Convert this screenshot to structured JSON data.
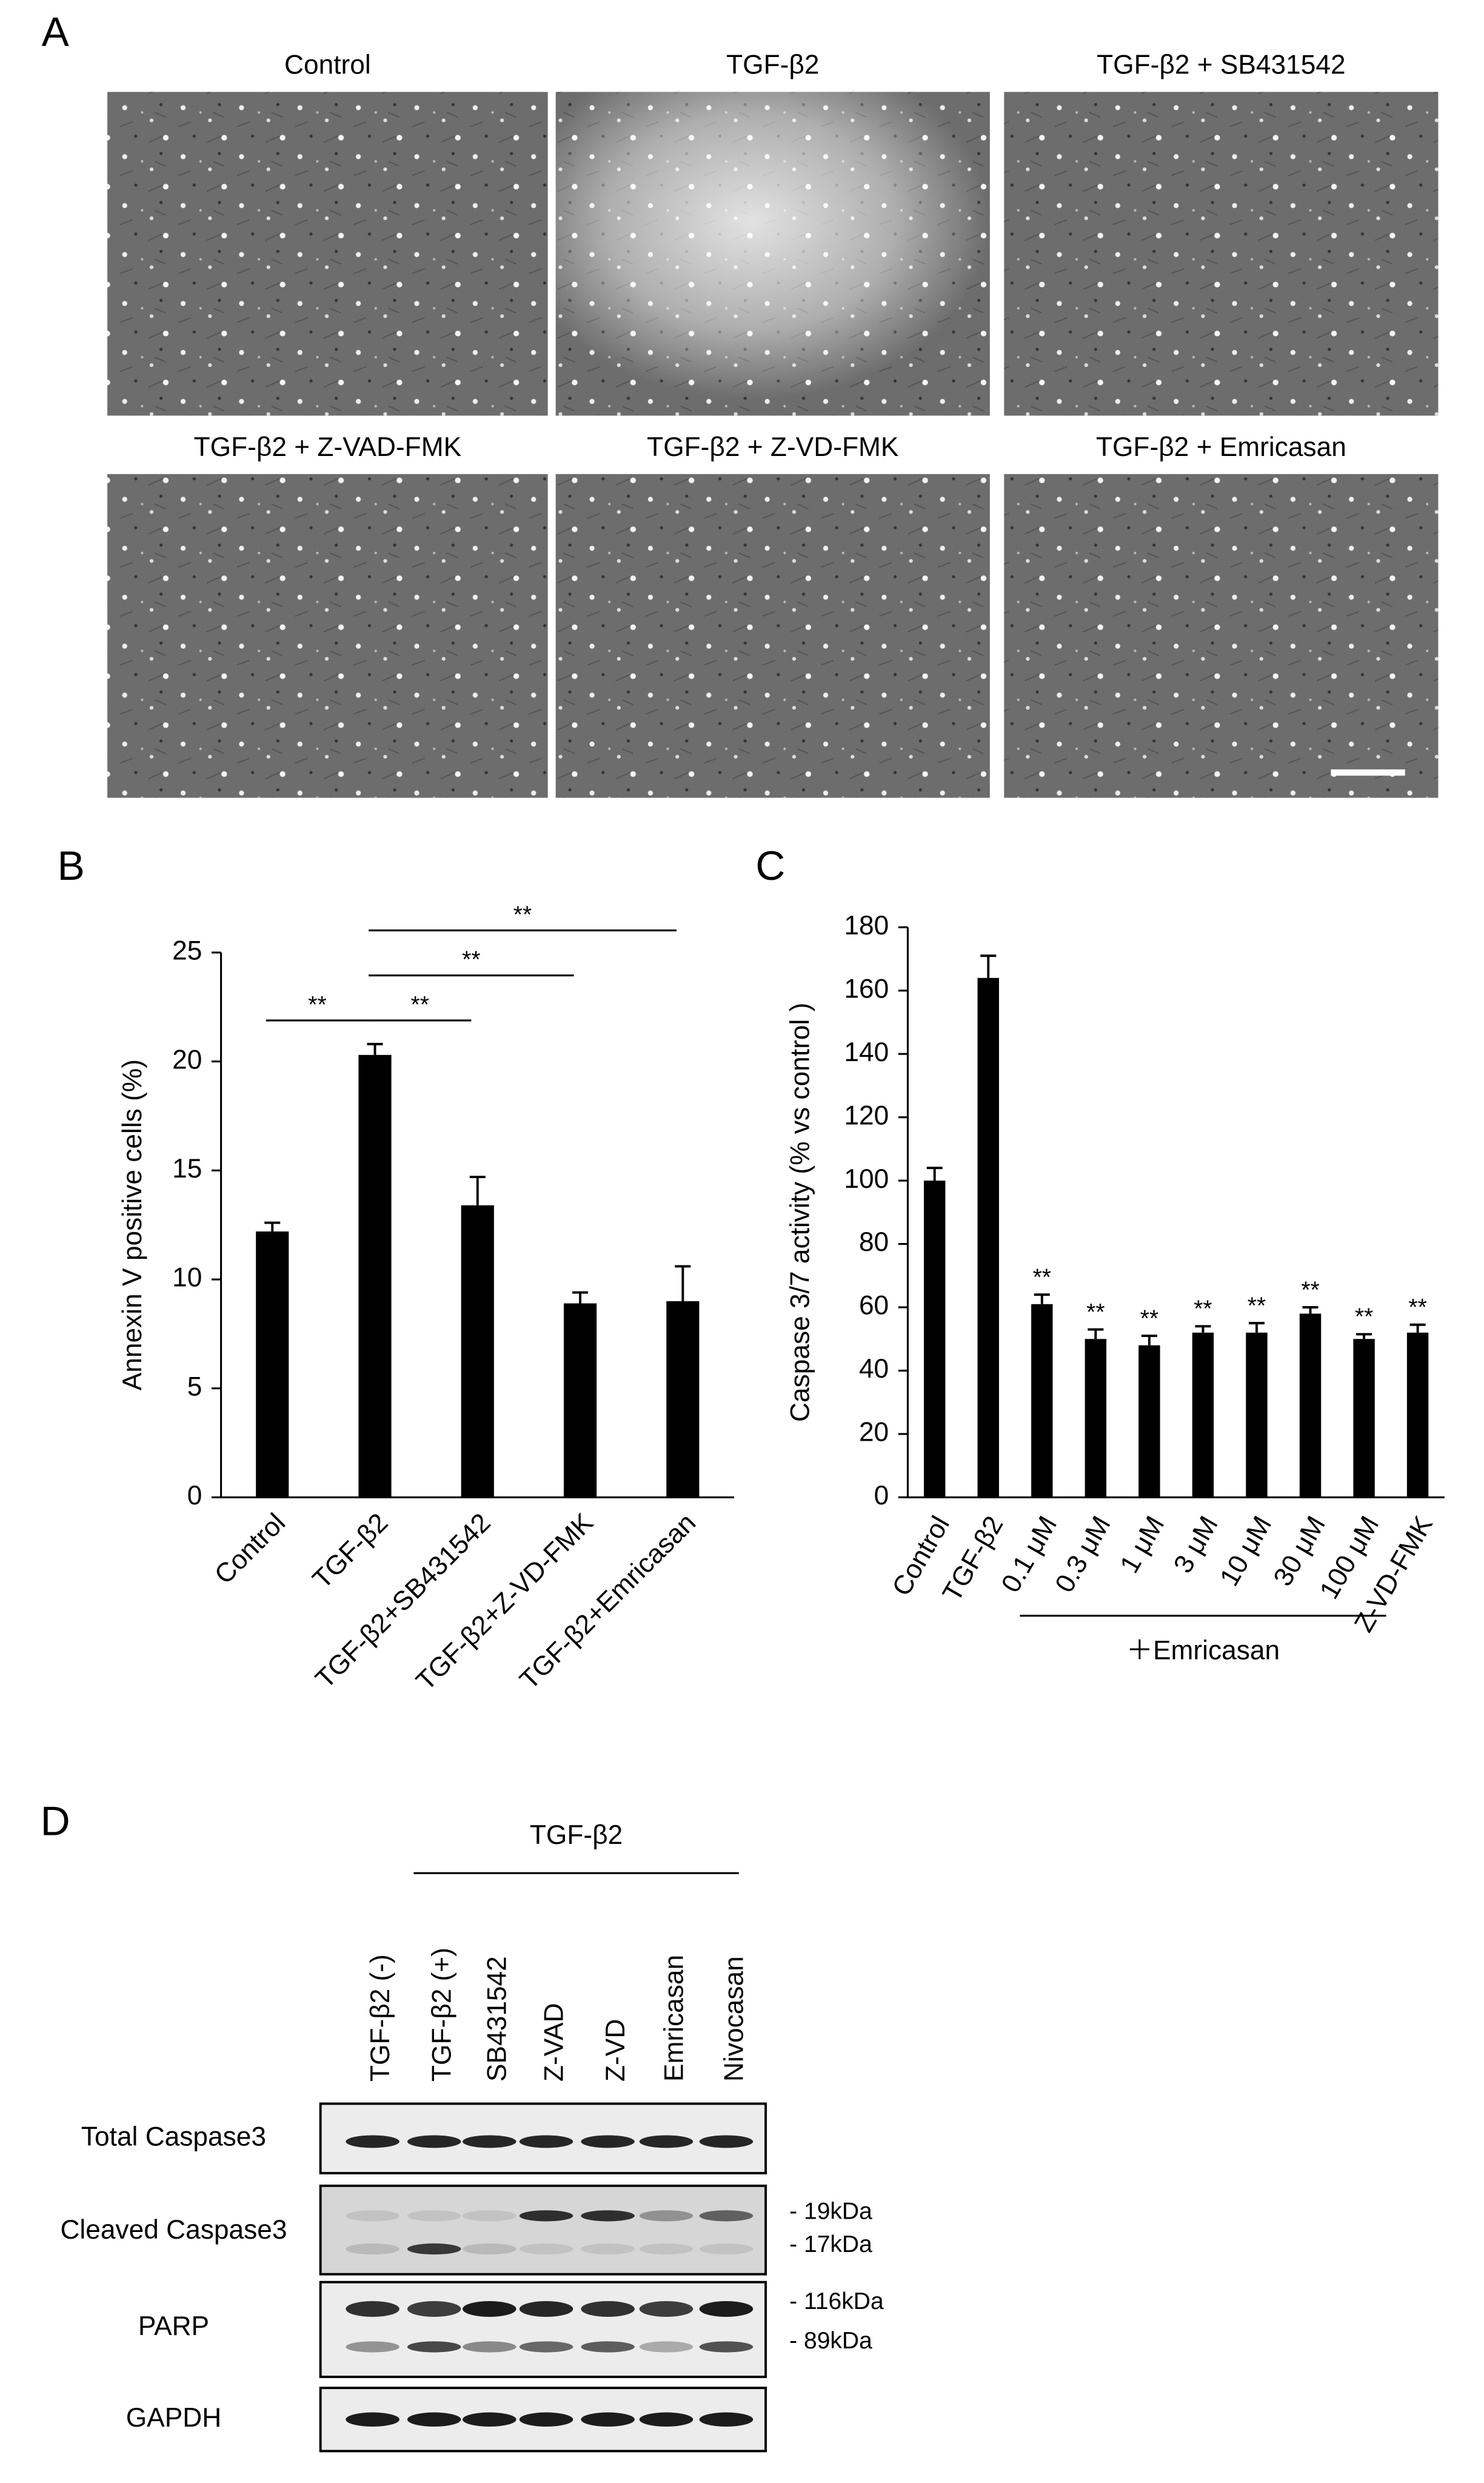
{
  "panel_labels": [
    "A",
    "B",
    "C",
    "D"
  ],
  "panel_a": {
    "titles": [
      "Control",
      "TGF-β2",
      "TGF-β2 + SB431542",
      "TGF-β2 + Z-VAD-FMK",
      "TGF-β2 + Z-VD-FMK",
      "TGF-β2 + Emricasan"
    ]
  },
  "chart_data": [
    {
      "type": "bar",
      "y_label": "Annexin V positive cells (%)",
      "categories": [
        "Control",
        "TGF-β2",
        "TGF-β2+SB431542",
        "TGF-β2+Z-VD-FMK",
        "TGF-β2+Emricasan"
      ],
      "values": [
        12.2,
        20.3,
        13.4,
        8.9,
        9.0
      ],
      "errors": [
        0.4,
        0.5,
        1.3,
        0.5,
        1.6
      ],
      "color": "#000000",
      "ylim": [
        0,
        25
      ],
      "yticks": [
        0,
        5,
        10,
        15,
        20,
        25
      ],
      "significance": [
        {
          "pair": [
            "Control",
            "TGF-β2"
          ],
          "label": "**"
        },
        {
          "pair": [
            "TGF-β2",
            "TGF-β2+SB431542"
          ],
          "label": "**"
        },
        {
          "pair": [
            "TGF-β2",
            "TGF-β2+Z-VD-FMK"
          ],
          "label": "**"
        },
        {
          "pair": [
            "TGF-β2",
            "TGF-β2+Emricasan"
          ],
          "label": "**"
        }
      ]
    },
    {
      "type": "bar",
      "y_label": "Caspase 3/7 activity (% vs control )",
      "categories": [
        "Control",
        "TGF-β2",
        "0.1 μM",
        "0.3 μM",
        "1 μM",
        "3 μM",
        "10 μM",
        "30 μM",
        "100 μM",
        "Z-VD-FMK"
      ],
      "values": [
        100,
        164,
        61,
        50,
        48,
        52,
        52,
        58,
        50,
        52
      ],
      "errors": [
        4,
        7,
        3,
        3,
        3,
        2,
        3,
        2,
        1.5,
        2.5
      ],
      "color": "#000000",
      "ylim": [
        0,
        180
      ],
      "yticks": [
        0,
        20,
        40,
        60,
        80,
        100,
        120,
        140,
        160,
        180
      ],
      "annotations": [
        null,
        null,
        "**",
        "**",
        "**",
        "**",
        "**",
        "**",
        "**",
        "**"
      ],
      "group": {
        "label": "＋Emricasan",
        "categories": [
          "0.1 μM",
          "100 μM"
        ]
      }
    }
  ],
  "panel_d": {
    "group_label": "TGF-β2",
    "lanes": [
      "TGF-β2 (-)",
      "TGF-β2 (+)",
      "SB431542",
      "Z-VAD",
      "Z-VD",
      "Emricasan",
      "Nivocasan"
    ],
    "rows": [
      "Total Caspase3",
      "Cleaved Caspase3",
      "PARP",
      "GAPDH"
    ],
    "markers": [
      "- 19kDa",
      "- 17kDa",
      "- 116kDa",
      "- 89kDa"
    ]
  }
}
